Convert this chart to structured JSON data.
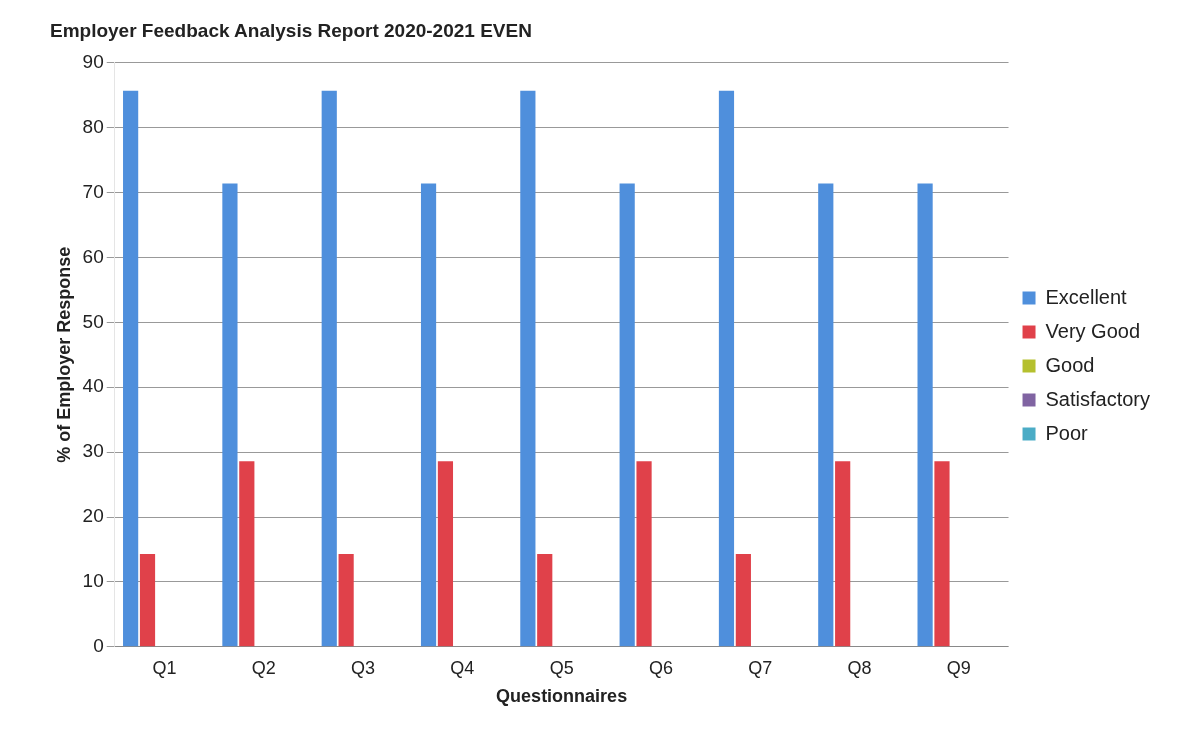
{
  "chart_data": {
    "type": "bar",
    "title": "Employer Feedback Analysis Report 2020-2021 EVEN",
    "xlabel": "Questionnaires",
    "ylabel": "% of Employer Response",
    "categories": [
      "Q1",
      "Q2",
      "Q3",
      "Q4",
      "Q5",
      "Q6",
      "Q7",
      "Q8",
      "Q9"
    ],
    "series": [
      {
        "name": "Excellent",
        "color": "#4f8fdc",
        "values": [
          85.7,
          71.4,
          85.7,
          71.4,
          85.7,
          71.4,
          85.7,
          71.4,
          71.4
        ]
      },
      {
        "name": "Very Good",
        "color": "#e0414a",
        "values": [
          14.3,
          28.6,
          14.3,
          28.6,
          14.3,
          28.6,
          14.3,
          28.6,
          28.6
        ]
      },
      {
        "name": "Good",
        "color": "#b5c02e",
        "values": [
          0,
          0,
          0,
          0,
          0,
          0,
          0,
          0,
          0
        ]
      },
      {
        "name": "Satisfactory",
        "color": "#8064a2",
        "values": [
          0,
          0,
          0,
          0,
          0,
          0,
          0,
          0,
          0
        ]
      },
      {
        "name": "Poor",
        "color": "#4bacc6",
        "values": [
          0,
          0,
          0,
          0,
          0,
          0,
          0,
          0,
          0
        ]
      }
    ],
    "ylim": [
      0,
      90
    ],
    "yticks": [
      0,
      10,
      20,
      30,
      40,
      50,
      60,
      70,
      80,
      90
    ],
    "grid": "y",
    "legend": "right"
  }
}
